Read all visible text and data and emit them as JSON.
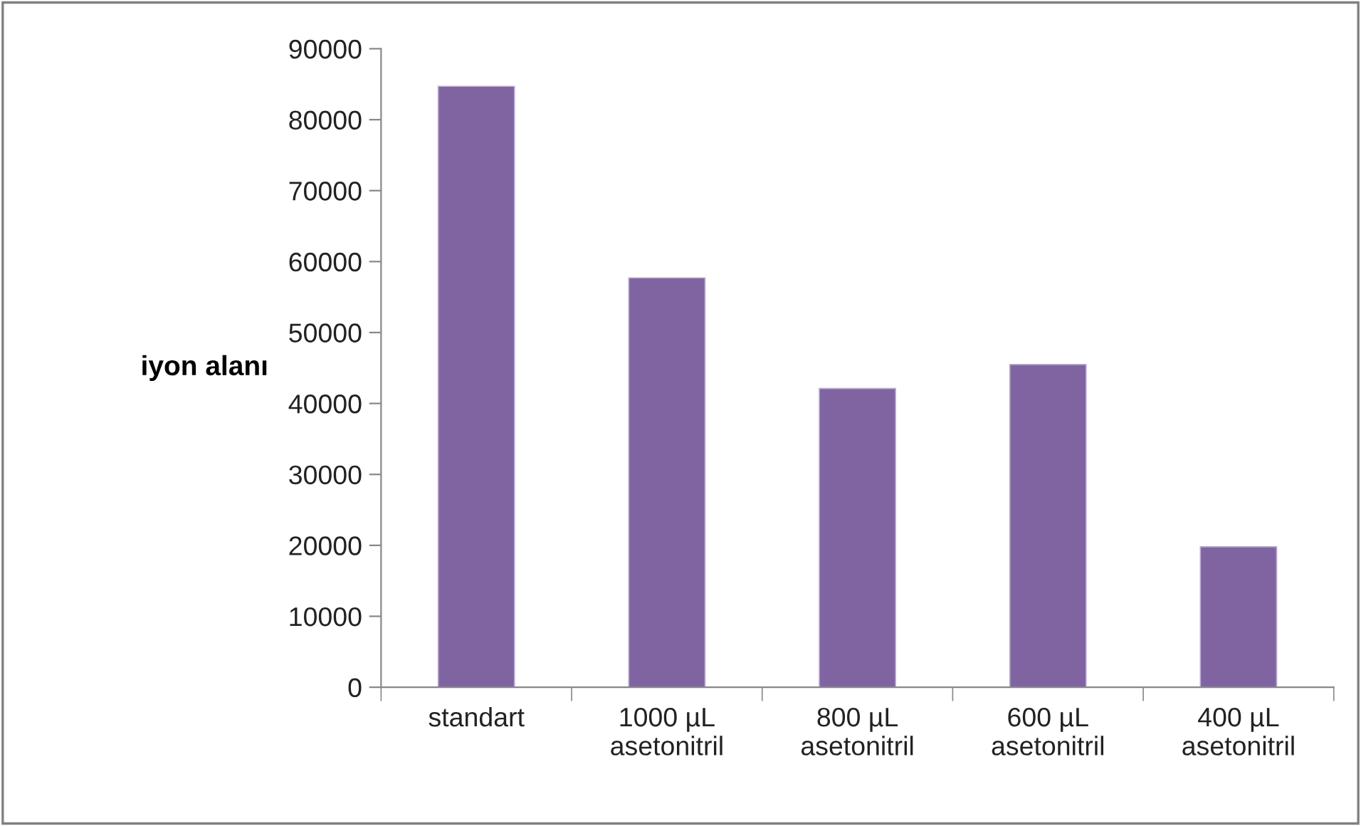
{
  "chart_data": {
    "type": "bar",
    "ylabel": "iyon alanı",
    "categories": [
      "standart",
      "1000 µL\nasetonitril",
      "800 µL\nasetonitril",
      "600 µL\nasetonitril",
      "400 µL\nasetonitril"
    ],
    "values": [
      84700,
      57700,
      42100,
      45500,
      19800
    ],
    "color": "#8064a2",
    "ylim": [
      0,
      90000
    ],
    "yticks": [
      0,
      10000,
      20000,
      30000,
      40000,
      50000,
      60000,
      70000,
      80000,
      90000
    ],
    "grid": false
  }
}
